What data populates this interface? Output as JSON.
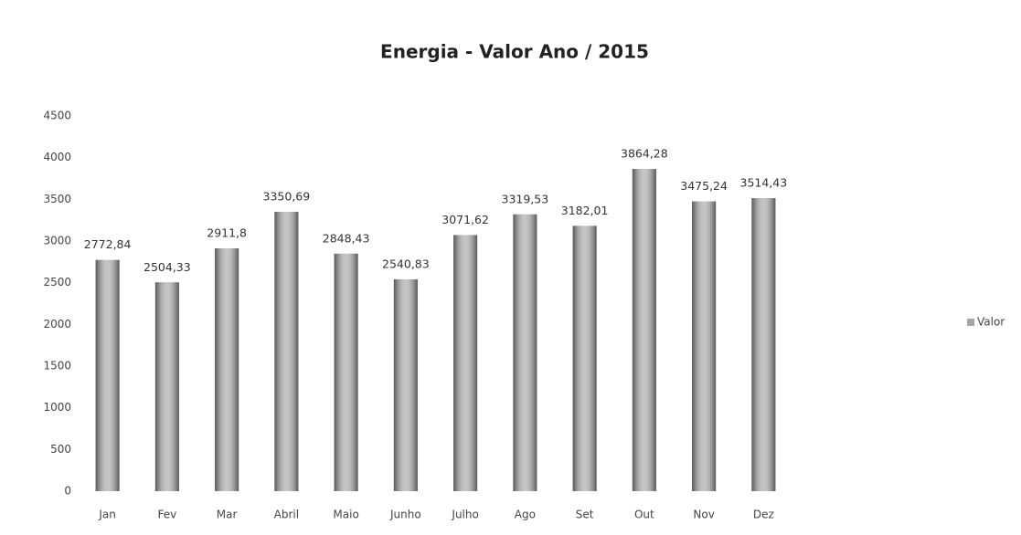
{
  "chart_data": {
    "type": "bar",
    "title": "Energia - Valor Ano / 2015",
    "categories": [
      "Jan",
      "Fev",
      "Mar",
      "Abril",
      "Maio",
      "Junho",
      "Julho",
      "Ago",
      "Set",
      "Out",
      "Nov",
      "Dez"
    ],
    "series": [
      {
        "name": "Valor",
        "color": "#a6a6a6",
        "values": [
          2772.84,
          2504.33,
          2911.8,
          3350.69,
          2848.43,
          2540.83,
          3071.62,
          3319.53,
          3182.01,
          3864.28,
          3475.24,
          3514.43
        ],
        "value_labels": [
          "2772,84",
          "2504,33",
          "2911,8",
          "3350,69",
          "2848,43",
          "2540,83",
          "3071,62",
          "3319,53",
          "3182,01",
          "3864,28",
          "3475,24",
          "3514,43"
        ]
      }
    ],
    "ylim": [
      0,
      4500
    ],
    "yticks": [
      0,
      500,
      1000,
      1500,
      2000,
      2500,
      3000,
      3500,
      4000,
      4500
    ],
    "grid": false,
    "legend": "right"
  }
}
